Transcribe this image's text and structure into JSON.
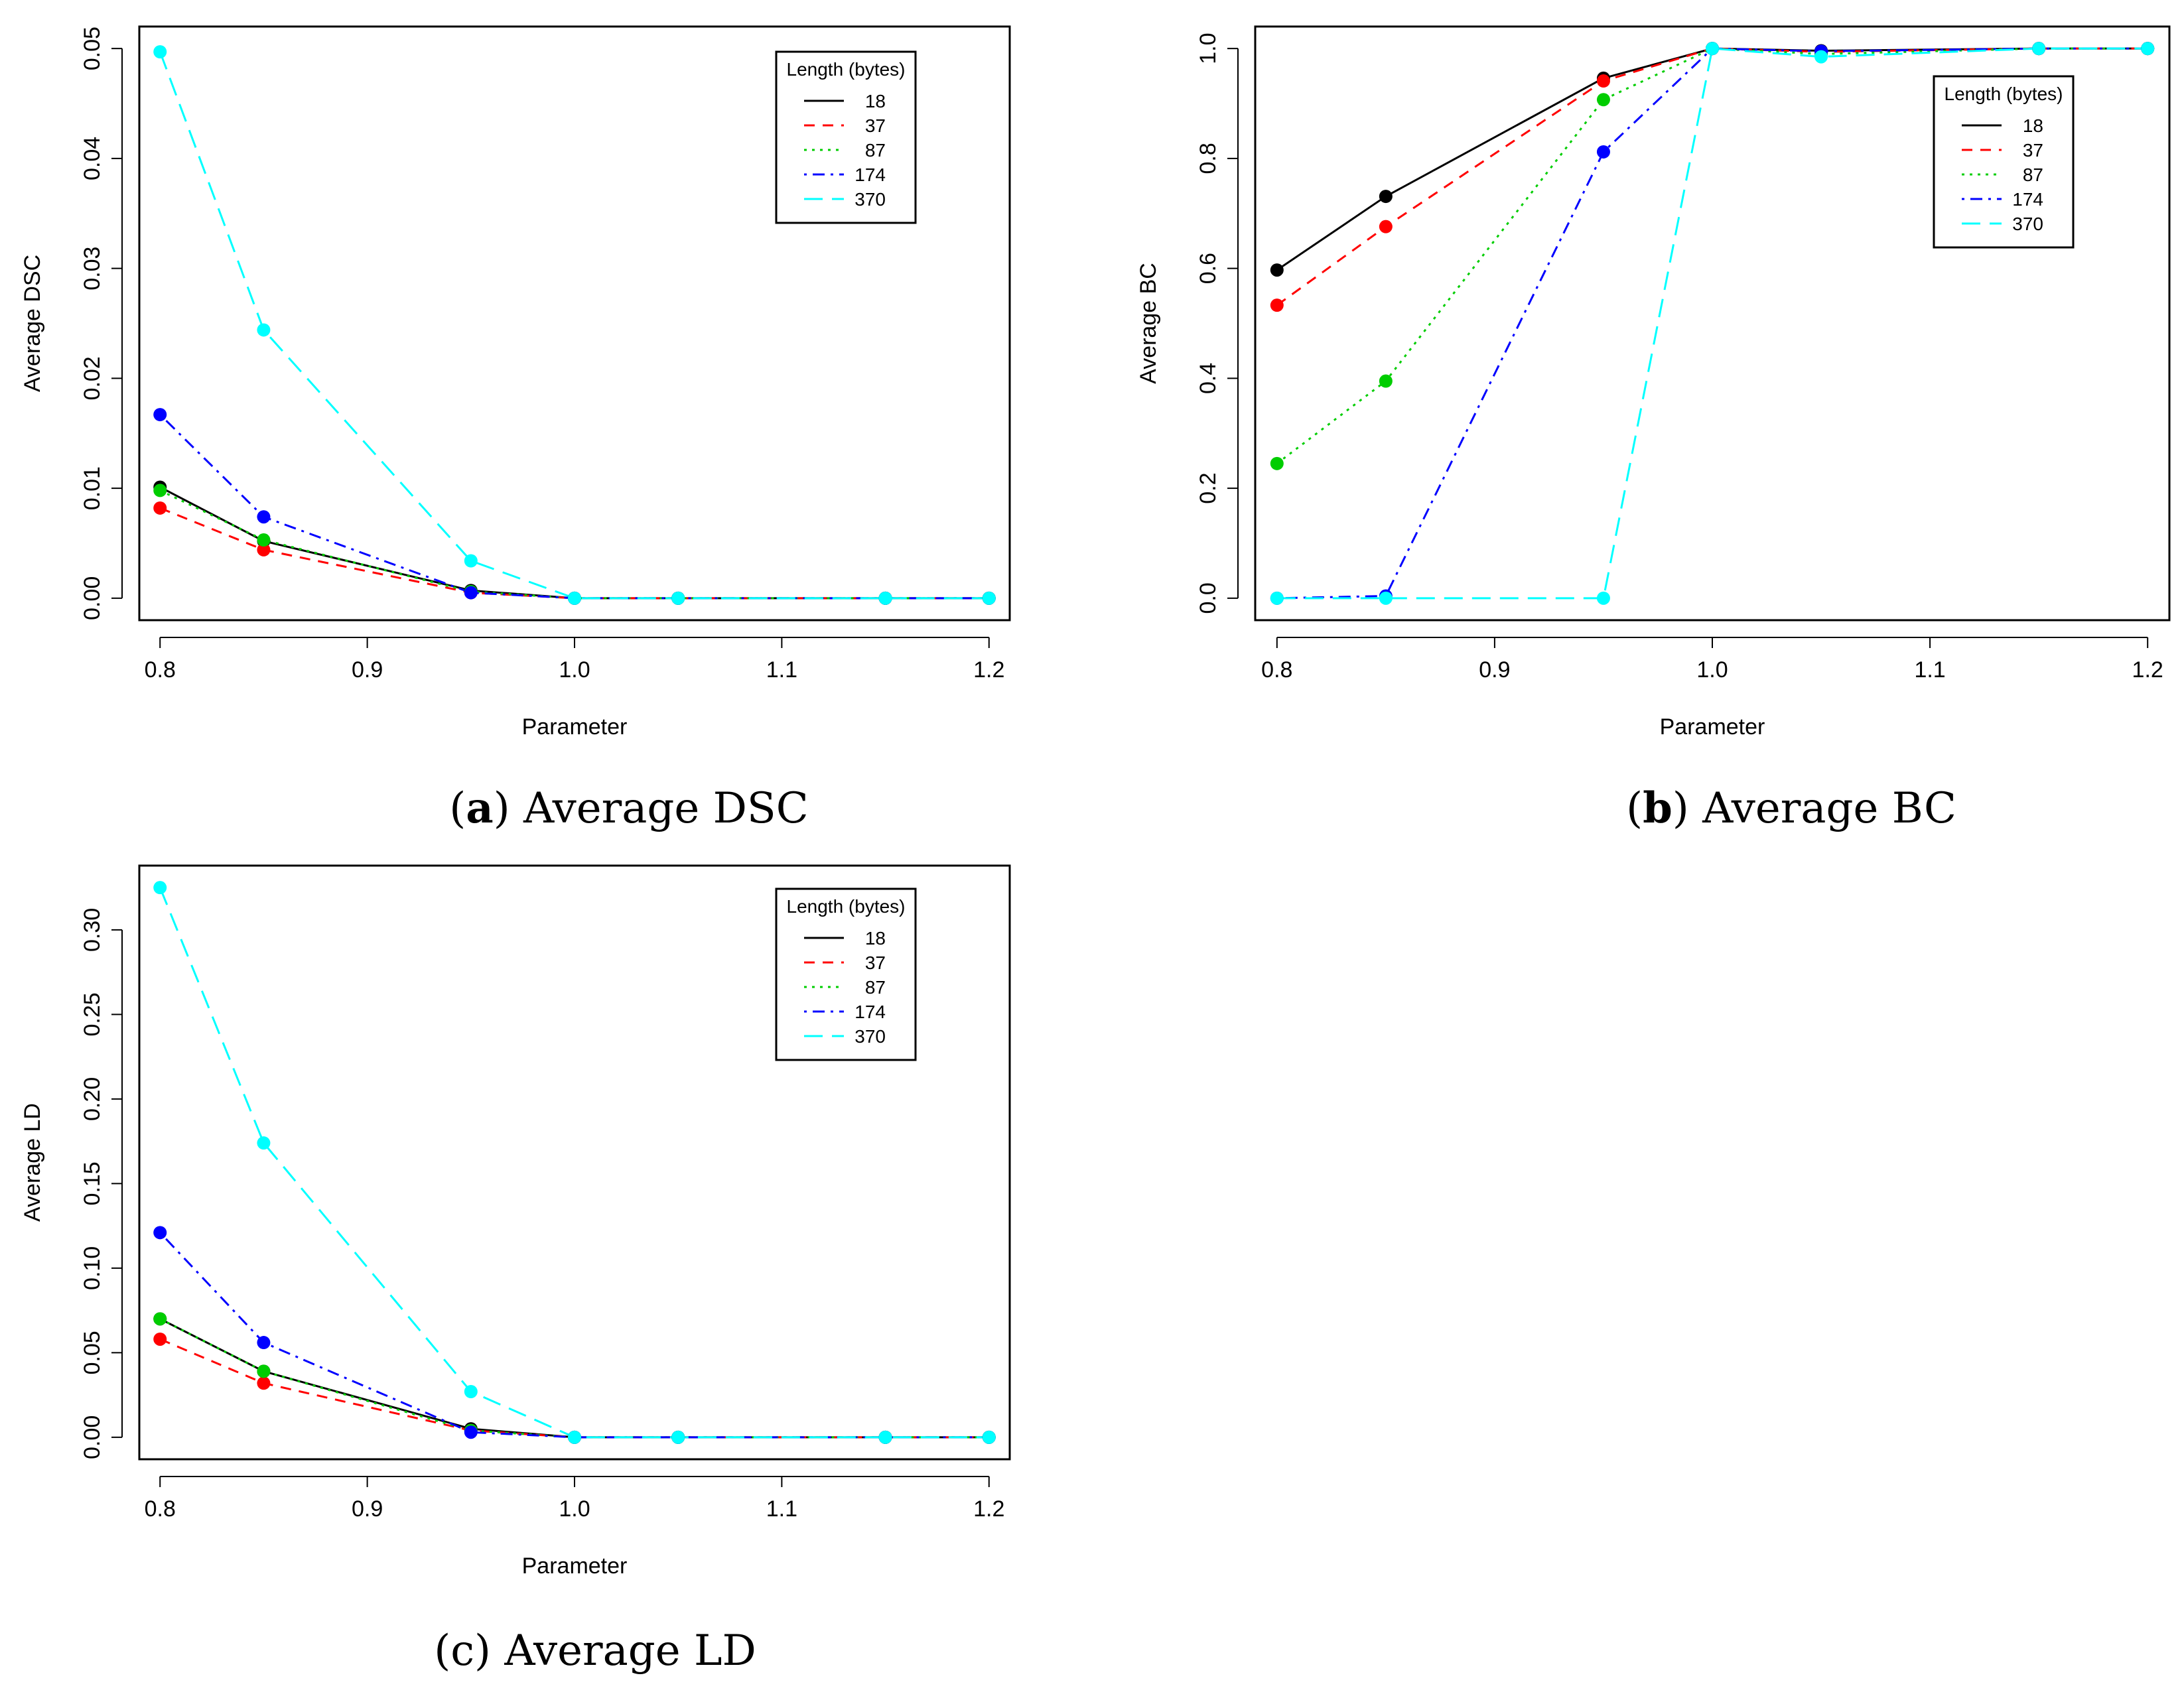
{
  "chart_data": [
    {
      "id": "a",
      "type": "line",
      "caption_letter": "a",
      "caption_text": " Average DSC",
      "caption_bold": true,
      "xlabel": "Parameter",
      "ylabel": "Average DSC",
      "xlim": [
        0.79,
        1.21
      ],
      "ylim": [
        -0.002,
        0.052
      ],
      "xticks": [
        0.8,
        0.9,
        1.0,
        1.1,
        1.2
      ],
      "xtick_labels": [
        "0.8",
        "0.9",
        "1.0",
        "1.1",
        "1.2"
      ],
      "yticks": [
        0.0,
        0.01,
        0.02,
        0.03,
        0.04,
        0.05
      ],
      "ytick_labels": [
        "0.00",
        "0.01",
        "0.02",
        "0.03",
        "0.04",
        "0.05"
      ],
      "legend_title": "Length (bytes)",
      "legend_position": "top-right",
      "x": [
        0.8,
        0.85,
        0.95,
        1.0,
        1.05,
        1.15,
        1.2
      ],
      "series": [
        {
          "name": "18",
          "color": "#000000",
          "dash": "solid",
          "values": [
            0.0101,
            0.0052,
            0.0007,
            0.0,
            0.0,
            0.0,
            0.0
          ]
        },
        {
          "name": "37",
          "color": "#ff0000",
          "dash": "dashed",
          "values": [
            0.0082,
            0.0044,
            0.0005,
            0.0,
            0.0,
            0.0,
            0.0
          ]
        },
        {
          "name": "87",
          "color": "#00cd00",
          "dash": "dotted",
          "values": [
            0.0098,
            0.0053,
            0.0006,
            0.0,
            0.0,
            0.0,
            0.0
          ]
        },
        {
          "name": "174",
          "color": "#0000ff",
          "dash": "dotdash",
          "values": [
            0.0167,
            0.0074,
            0.0005,
            0.0,
            0.0,
            0.0,
            0.0
          ]
        },
        {
          "name": "370",
          "color": "#00ffff",
          "dash": "longdash",
          "values": [
            0.0497,
            0.0244,
            0.0034,
            0.0,
            0.0,
            0.0,
            0.0
          ]
        }
      ]
    },
    {
      "id": "b",
      "type": "line",
      "caption_letter": "b",
      "caption_text": " Average BC",
      "caption_bold": true,
      "xlabel": "Parameter",
      "ylabel": "Average BC",
      "xlim": [
        0.79,
        1.21
      ],
      "ylim": [
        -0.04,
        1.04
      ],
      "xticks": [
        0.8,
        0.9,
        1.0,
        1.1,
        1.2
      ],
      "xtick_labels": [
        "0.8",
        "0.9",
        "1.0",
        "1.1",
        "1.2"
      ],
      "yticks": [
        0.0,
        0.2,
        0.4,
        0.6,
        0.8,
        1.0
      ],
      "ytick_labels": [
        "0.0",
        "0.2",
        "0.4",
        "0.6",
        "0.8",
        "1.0"
      ],
      "legend_title": "Length (bytes)",
      "legend_position": "right",
      "x": [
        0.8,
        0.85,
        0.95,
        1.0,
        1.05,
        1.15,
        1.2
      ],
      "series": [
        {
          "name": "18",
          "color": "#000000",
          "dash": "solid",
          "values": [
            0.597,
            0.731,
            0.946,
            1.0,
            0.996,
            1.0,
            1.0
          ]
        },
        {
          "name": "37",
          "color": "#ff0000",
          "dash": "dashed",
          "values": [
            0.533,
            0.676,
            0.941,
            1.0,
            0.994,
            1.0,
            1.0
          ]
        },
        {
          "name": "87",
          "color": "#00cd00",
          "dash": "dotted",
          "values": [
            0.245,
            0.395,
            0.907,
            1.0,
            0.99,
            1.0,
            1.0
          ]
        },
        {
          "name": "174",
          "color": "#0000ff",
          "dash": "dotdash",
          "values": [
            0.0,
            0.004,
            0.812,
            1.0,
            0.995,
            1.0,
            1.0
          ]
        },
        {
          "name": "370",
          "color": "#00ffff",
          "dash": "longdash",
          "values": [
            0.0,
            0.0,
            0.0,
            1.0,
            0.985,
            1.0,
            1.0
          ]
        }
      ]
    },
    {
      "id": "c",
      "type": "line",
      "caption_letter": "c",
      "caption_text": " Average LD",
      "caption_bold": false,
      "xlabel": "Parameter",
      "ylabel": "Average LD",
      "xlim": [
        0.79,
        1.21
      ],
      "ylim": [
        -0.013,
        0.338
      ],
      "xticks": [
        0.8,
        0.9,
        1.0,
        1.1,
        1.2
      ],
      "xtick_labels": [
        "0.8",
        "0.9",
        "1.0",
        "1.1",
        "1.2"
      ],
      "yticks": [
        0.0,
        0.05,
        0.1,
        0.15,
        0.2,
        0.25,
        0.3
      ],
      "ytick_labels": [
        "0.00",
        "0.05",
        "0.10",
        "0.15",
        "0.20",
        "0.25",
        "0.30"
      ],
      "legend_title": "Length (bytes)",
      "legend_position": "top-right",
      "x": [
        0.8,
        0.85,
        0.95,
        1.0,
        1.05,
        1.15,
        1.2
      ],
      "series": [
        {
          "name": "18",
          "color": "#000000",
          "dash": "solid",
          "values": [
            0.07,
            0.039,
            0.005,
            0.0,
            0.0,
            0.0,
            0.0
          ]
        },
        {
          "name": "37",
          "color": "#ff0000",
          "dash": "dashed",
          "values": [
            0.058,
            0.032,
            0.004,
            0.0,
            0.0,
            0.0,
            0.0
          ]
        },
        {
          "name": "87",
          "color": "#00cd00",
          "dash": "dotted",
          "values": [
            0.07,
            0.039,
            0.004,
            0.0,
            0.0,
            0.0,
            0.0
          ]
        },
        {
          "name": "174",
          "color": "#0000ff",
          "dash": "dotdash",
          "values": [
            0.121,
            0.056,
            0.003,
            0.0,
            0.0,
            0.0,
            0.0
          ]
        },
        {
          "name": "370",
          "color": "#00ffff",
          "dash": "longdash",
          "values": [
            0.325,
            0.174,
            0.027,
            0.0,
            0.0,
            0.0,
            0.0
          ]
        }
      ]
    }
  ]
}
